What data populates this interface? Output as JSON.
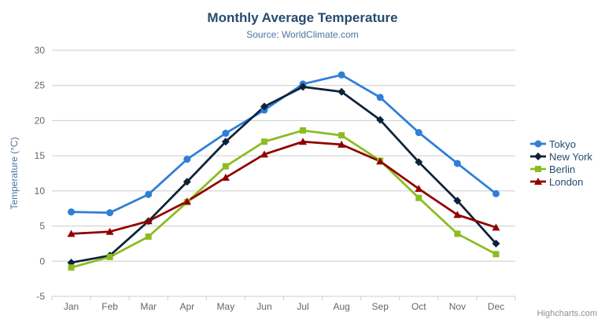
{
  "header": {
    "title": "Monthly Average Temperature",
    "subtitle": "Source: WorldClimate.com"
  },
  "menu": {
    "icon": "hamburger-icon"
  },
  "credits": {
    "label": "Highcharts.com"
  },
  "chart_data": {
    "type": "line",
    "title": "Monthly Average Temperature",
    "subtitle": "Source: WorldClimate.com",
    "xlabel": "",
    "ylabel": "Temperature (°C)",
    "ylim": [
      -5,
      30
    ],
    "yticks": [
      -5,
      0,
      5,
      10,
      15,
      20,
      25,
      30
    ],
    "grid": true,
    "legend_position": "right",
    "categories": [
      "Jan",
      "Feb",
      "Mar",
      "Apr",
      "May",
      "Jun",
      "Jul",
      "Aug",
      "Sep",
      "Oct",
      "Nov",
      "Dec"
    ],
    "series": [
      {
        "name": "Tokyo",
        "color": "#2f7ed8",
        "marker": "circle",
        "values": [
          7.0,
          6.9,
          9.5,
          14.5,
          18.2,
          21.5,
          25.2,
          26.5,
          23.3,
          18.3,
          13.9,
          9.6
        ]
      },
      {
        "name": "New York",
        "color": "#0d233a",
        "marker": "diamond",
        "values": [
          -0.2,
          0.8,
          5.7,
          11.3,
          17.0,
          22.0,
          24.8,
          24.1,
          20.1,
          14.1,
          8.6,
          2.5
        ]
      },
      {
        "name": "Berlin",
        "color": "#8bbc21",
        "marker": "square",
        "values": [
          -0.9,
          0.6,
          3.5,
          8.4,
          13.5,
          17.0,
          18.6,
          17.9,
          14.3,
          9.0,
          3.9,
          1.0
        ]
      },
      {
        "name": "London",
        "color": "#910000",
        "marker": "triangle",
        "values": [
          3.9,
          4.2,
          5.7,
          8.5,
          11.9,
          15.2,
          17.0,
          16.6,
          14.2,
          10.3,
          6.6,
          4.8
        ]
      }
    ],
    "colors": {
      "title": "#274b6d",
      "subtitle": "#4d759e",
      "axis_labels": "#666666",
      "axis_title": "#4d759e",
      "gridline": "#cccccc",
      "axis_line": "#c0d0e0",
      "legend_text": "#274b6d",
      "credits_text": "#909090",
      "menu_icon": "#666666"
    }
  }
}
